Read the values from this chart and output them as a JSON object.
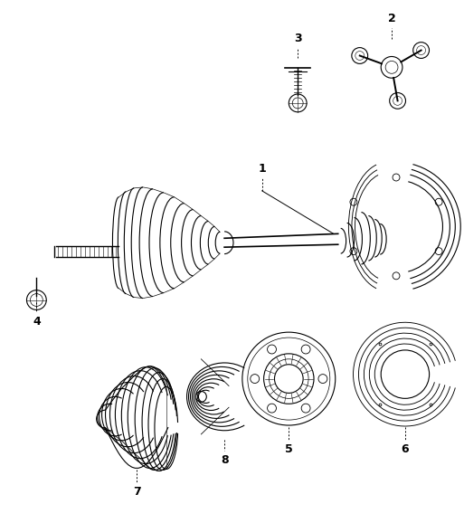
{
  "background_color": "#ffffff",
  "fig_width": 5.13,
  "fig_height": 5.78,
  "dpi": 100
}
